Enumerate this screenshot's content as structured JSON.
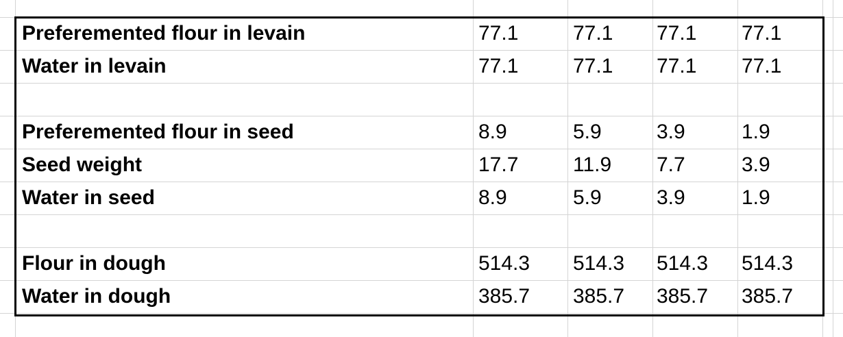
{
  "table": {
    "groups": [
      [
        {
          "label": "Preferemented flour in levain",
          "values": [
            77.1,
            77.1,
            77.1,
            77.1
          ]
        },
        {
          "label": "Water in levain",
          "values": [
            77.1,
            77.1,
            77.1,
            77.1
          ]
        }
      ],
      [
        {
          "label": "Preferemented flour in seed",
          "values": [
            8.9,
            5.9,
            3.9,
            1.9
          ]
        },
        {
          "label": "Seed weight",
          "values": [
            17.7,
            11.9,
            7.7,
            3.9
          ]
        },
        {
          "label": "Water in seed",
          "values": [
            8.9,
            5.9,
            3.9,
            1.9
          ]
        }
      ],
      [
        {
          "label": "Flour in dough",
          "values": [
            514.3,
            514.3,
            514.3,
            514.3
          ]
        },
        {
          "label": "Water in dough",
          "values": [
            385.7,
            385.7,
            385.7,
            385.7
          ]
        }
      ]
    ]
  }
}
